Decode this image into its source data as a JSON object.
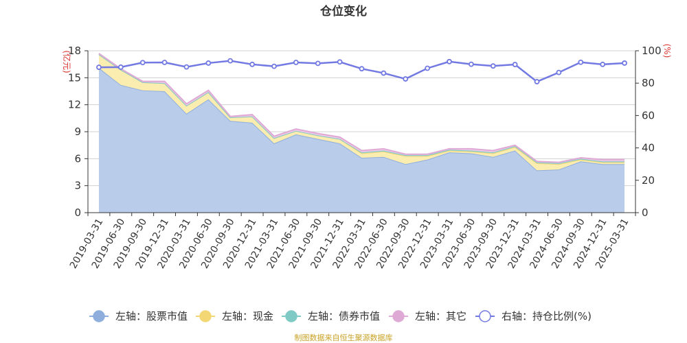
{
  "chart_data": {
    "type": "area",
    "title": "仓位变化",
    "left_unit": "(亿元)",
    "right_unit": "(%)",
    "categories": [
      "2019-03-31",
      "2019-06-30",
      "2019-09-30",
      "2019-12-31",
      "2020-03-31",
      "2020-06-30",
      "2020-09-30",
      "2020-12-31",
      "2021-03-31",
      "2021-06-30",
      "2021-09-30",
      "2021-12-31",
      "2022-03-31",
      "2022-06-30",
      "2022-09-30",
      "2022-12-31",
      "2023-03-31",
      "2023-06-30",
      "2023-09-30",
      "2023-12-31",
      "2024-03-31",
      "2024-06-30",
      "2024-09-30",
      "2024-12-31",
      "2025-03-31"
    ],
    "y_left_ticks": [
      "0",
      "3",
      "6",
      "9",
      "12",
      "15",
      "18"
    ],
    "y_right_ticks": [
      "0",
      "20",
      "40",
      "60",
      "80",
      "100"
    ],
    "ylim_left": [
      0,
      18
    ],
    "ylim_right": [
      0,
      100
    ],
    "stacked": true,
    "series": [
      {
        "name": "左轴：股票市值",
        "axis": "left",
        "color": "#b9cdeb",
        "stroke": "#8eaedd",
        "values": [
          16.1,
          14.2,
          13.6,
          13.5,
          11.0,
          12.6,
          10.2,
          10.0,
          7.7,
          8.7,
          8.2,
          7.7,
          6.1,
          6.2,
          5.4,
          5.9,
          6.7,
          6.6,
          6.2,
          6.9,
          4.7,
          4.8,
          5.7,
          5.4,
          5.4
        ]
      },
      {
        "name": "左轴：现金",
        "axis": "left",
        "color": "#fbecb0",
        "stroke": "#f3d775",
        "values": [
          1.5,
          1.7,
          0.9,
          0.9,
          0.9,
          0.8,
          0.4,
          0.7,
          0.6,
          0.4,
          0.4,
          0.5,
          0.5,
          0.6,
          0.9,
          0.4,
          0.2,
          0.2,
          0.4,
          0.4,
          0.8,
          0.6,
          0.2,
          0.2,
          0.2
        ]
      },
      {
        "name": "左轴：债券市值",
        "axis": "left",
        "color": "#a9dbd8",
        "stroke": "#7fcac5",
        "values": [
          0,
          0,
          0,
          0,
          0,
          0,
          0,
          0,
          0,
          0,
          0,
          0,
          0.1,
          0.1,
          0.1,
          0.1,
          0.1,
          0.1,
          0.1,
          0.1,
          0.1,
          0.1,
          0.1,
          0.1,
          0.1
        ]
      },
      {
        "name": "左轴：其它",
        "axis": "left",
        "color": "#eecbe6",
        "stroke": "#dfa9d6",
        "values": [
          0.1,
          0.1,
          0.1,
          0.2,
          0.2,
          0.2,
          0.1,
          0.2,
          0.2,
          0.2,
          0.2,
          0.2,
          0.2,
          0.2,
          0.1,
          0.1,
          0.1,
          0.2,
          0.2,
          0.1,
          0.1,
          0.1,
          0.1,
          0.2,
          0.2
        ]
      },
      {
        "name": "右轴：持仓比例(%)",
        "axis": "right",
        "type": "line",
        "color": "#7279e2",
        "values": [
          89.8,
          89.9,
          92.7,
          92.8,
          90.0,
          92.4,
          93.8,
          91.6,
          90.4,
          92.8,
          92.2,
          93.1,
          88.9,
          86.2,
          82.6,
          89.2,
          93.3,
          91.7,
          90.6,
          91.5,
          80.9,
          86.6,
          92.9,
          91.6,
          92.4
        ]
      }
    ],
    "grid": true,
    "legend_position": "bottom",
    "source_text": "制图数据来自恒生聚源数据库"
  }
}
